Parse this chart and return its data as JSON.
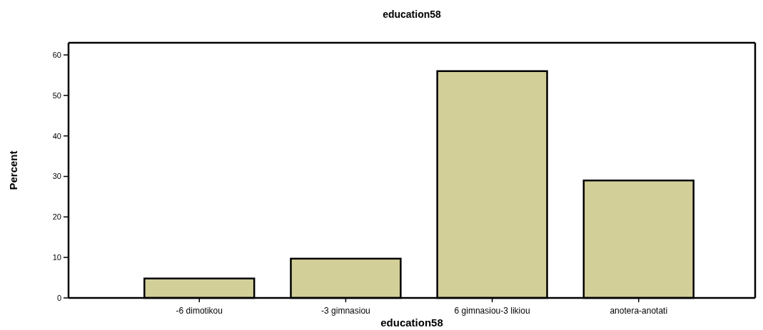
{
  "chart_data": {
    "type": "bar",
    "title": "education58",
    "xlabel": "education58",
    "ylabel": "Percent",
    "categories": [
      "-6 dimotikou",
      "-3 gimnasiou",
      "6 gimnasiou-3 likiou",
      "anotera-anotati"
    ],
    "values": [
      4.8,
      9.7,
      56.0,
      29.0
    ],
    "color": "#d3cf98",
    "ylim": [
      0,
      63
    ],
    "yticks": [
      0,
      10,
      20,
      30,
      40,
      50,
      60
    ],
    "grid": false
  }
}
